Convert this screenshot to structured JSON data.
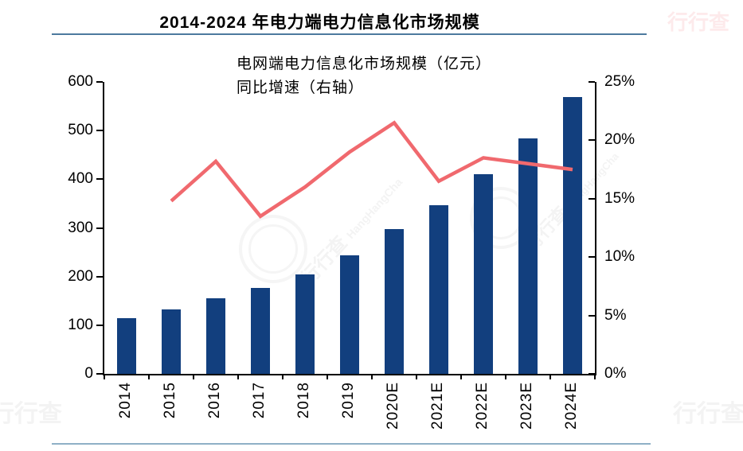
{
  "page": {
    "title": "2014-2024 年电力端电力信息化市场规模"
  },
  "legend": {
    "bar_label": "电网端电力信息化市场规模（亿元）",
    "line_label": "同比增速（右轴）"
  },
  "colors": {
    "bar": "#123F7E",
    "line": "#F0696E",
    "title_rule": "#4d7a9e",
    "bottom_rule": "#8fb0c6"
  },
  "watermark": {
    "text": "行行查",
    "subtext": "HangHangCha"
  },
  "chart_data": {
    "type": "bar",
    "title": "2014-2024 年电力端电力信息化市场规模",
    "categories": [
      "2014",
      "2015",
      "2016",
      "2017",
      "2018",
      "2019",
      "2020E",
      "2021E",
      "2022E",
      "2023E",
      "2024E"
    ],
    "series": [
      {
        "name": "电网端电力信息化市场规模（亿元）",
        "type": "bar",
        "axis": "left",
        "color": "#123F7E",
        "values": [
          115,
          132,
          156,
          177,
          205,
          244,
          297,
          346,
          410,
          484,
          569
        ]
      },
      {
        "name": "同比增速（右轴）",
        "type": "line",
        "axis": "right",
        "color": "#F0696E",
        "values": [
          null,
          14.8,
          18.2,
          13.5,
          16.0,
          19.0,
          21.5,
          16.5,
          18.5,
          18.0,
          17.5
        ]
      }
    ],
    "left_axis": {
      "min": 0,
      "max": 600,
      "step": 100,
      "labels": [
        "0",
        "100",
        "200",
        "300",
        "400",
        "500",
        "600"
      ],
      "unit": "亿元"
    },
    "right_axis": {
      "min": 0,
      "max": 25,
      "step": 5,
      "labels": [
        "0%",
        "5%",
        "10%",
        "15%",
        "20%",
        "25%"
      ],
      "unit": "%"
    },
    "grid": false,
    "legend_position": "top-left"
  }
}
